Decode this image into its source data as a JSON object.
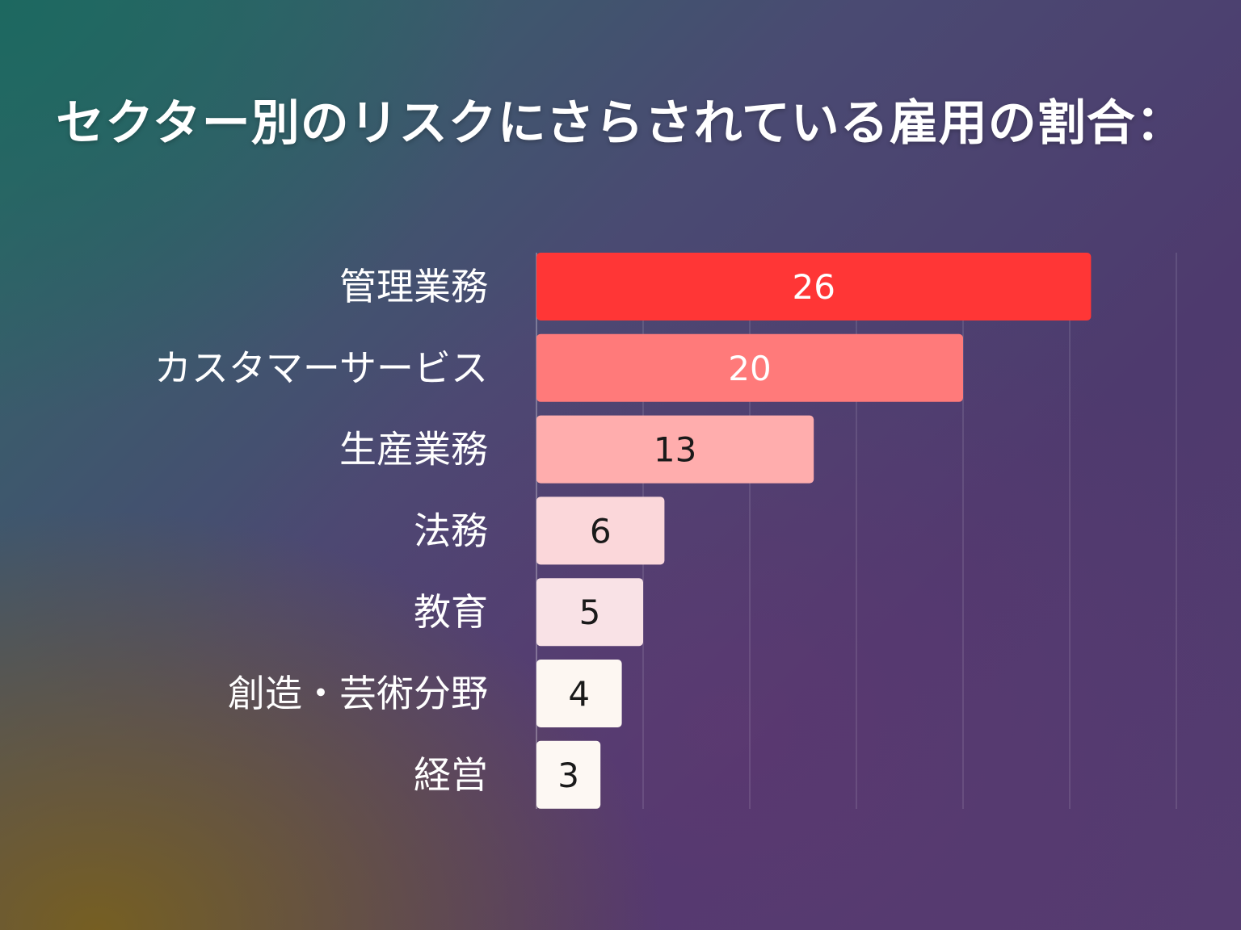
{
  "chart_data": {
    "type": "bar",
    "orientation": "horizontal",
    "title": "セクター別のリスクにさらされている雇用の割合：",
    "categories": [
      "管理業務",
      "カスタマーサービス",
      "生産業務",
      "法務",
      "教育",
      "創造・芸術分野",
      "経営"
    ],
    "values": [
      26,
      20,
      13,
      6,
      5,
      4,
      3
    ],
    "bar_colors": [
      "#ff3636",
      "#ff7a7a",
      "#ffadad",
      "#fbd7da",
      "#f9e2e6",
      "#fdf7f2",
      "#fdf8f3"
    ],
    "value_label_colors": [
      "#ffffff",
      "#ffffff",
      "#1a1a1a",
      "#1a1a1a",
      "#1a1a1a",
      "#1a1a1a",
      "#1a1a1a"
    ],
    "xlim": [
      0,
      30
    ],
    "gridlines_at": [
      5,
      10,
      15,
      20,
      25,
      30
    ],
    "grid": true,
    "xlabel": "",
    "ylabel": "",
    "legend": "none"
  }
}
